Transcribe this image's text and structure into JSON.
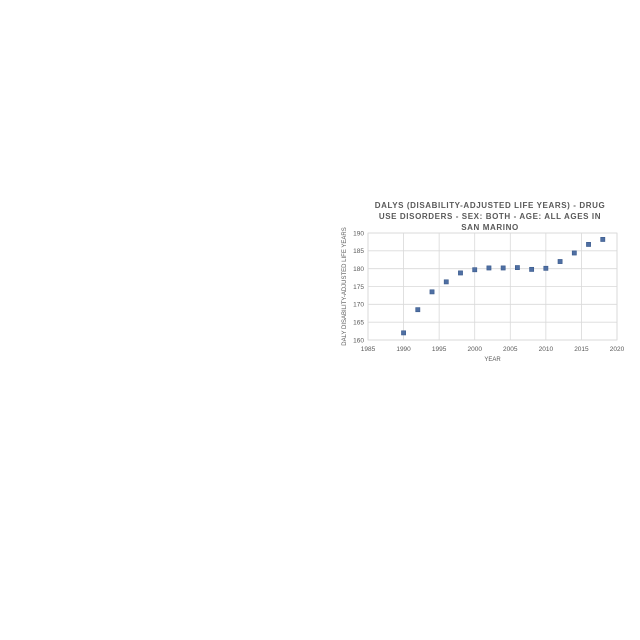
{
  "chart_data": {
    "type": "scatter",
    "title": "DALYS (DISABILITY-ADJUSTED LIFE YEARS) - DRUG USE DISORDERS - SEX: BOTH - AGE: ALL AGES IN SAN MARINO",
    "xlabel": "YEAR",
    "ylabel": "DALY DISABILITY-ADJUSTED LIFE YEARS",
    "xlim": [
      1985,
      2020
    ],
    "ylim": [
      160,
      190
    ],
    "x_ticks": [
      1985,
      1990,
      1995,
      2000,
      2005,
      2010,
      2015,
      2020
    ],
    "y_ticks": [
      160,
      165,
      170,
      175,
      180,
      185,
      190
    ],
    "grid": true,
    "legend": "none",
    "series": [
      {
        "marker_color": "#4f6fa3",
        "points": [
          {
            "x": 1990,
            "y": 162.0
          },
          {
            "x": 1992,
            "y": 168.5
          },
          {
            "x": 1994,
            "y": 173.5
          },
          {
            "x": 1996,
            "y": 176.3
          },
          {
            "x": 1998,
            "y": 178.8
          },
          {
            "x": 2000,
            "y": 179.7
          },
          {
            "x": 2002,
            "y": 180.2
          },
          {
            "x": 2004,
            "y": 180.2
          },
          {
            "x": 2006,
            "y": 180.3
          },
          {
            "x": 2008,
            "y": 179.8
          },
          {
            "x": 2010,
            "y": 180.1
          },
          {
            "x": 2012,
            "y": 182.0
          },
          {
            "x": 2014,
            "y": 184.4
          },
          {
            "x": 2016,
            "y": 186.8
          },
          {
            "x": 2018,
            "y": 188.2
          }
        ]
      }
    ]
  }
}
